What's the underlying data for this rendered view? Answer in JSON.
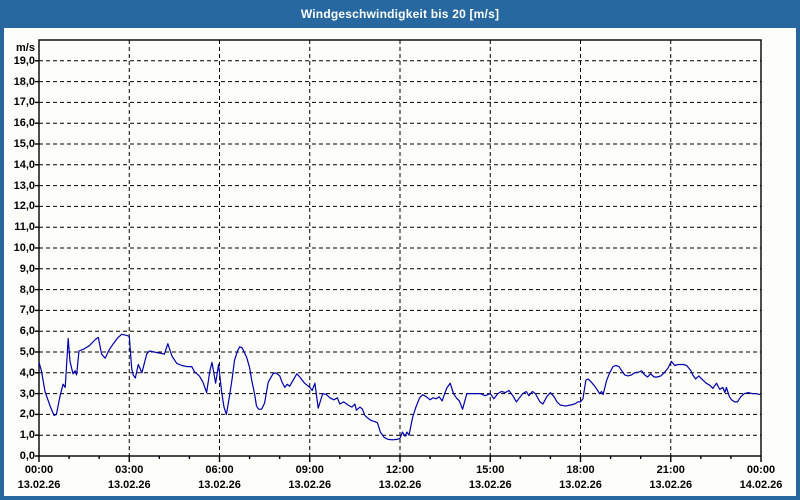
{
  "window": {
    "title": "Windgeschwindigkeit bis 20 [m/s]"
  },
  "colors": {
    "titlebar_bg": "#26689f",
    "frame": "#26689f",
    "panel_bg": "#fdfdfa",
    "line": "#0000aa",
    "grid": "#000000",
    "axis": "#000000",
    "text": "#000000",
    "title_text": "#ffffff"
  },
  "chart_data": {
    "type": "line",
    "title": "Windgeschwindigkeit bis 20 [m/s]",
    "ylabel": "m/s",
    "ylim": [
      0,
      20
    ],
    "ytick_step": 1,
    "ytick_labels": [
      "0,0",
      "1,0",
      "2,0",
      "3,0",
      "4,0",
      "5,0",
      "6,0",
      "7,0",
      "8,0",
      "9,0",
      "10,0",
      "11,0",
      "12,0",
      "13,0",
      "14,0",
      "15,0",
      "16,0",
      "17,0",
      "18,0",
      "19,0"
    ],
    "xlim_hours": [
      0,
      24
    ],
    "xticks": [
      {
        "hour": 0,
        "time": "00:00",
        "date": "13.02.26"
      },
      {
        "hour": 3,
        "time": "03:00",
        "date": "13.02.26"
      },
      {
        "hour": 6,
        "time": "06:00",
        "date": "13.02.26"
      },
      {
        "hour": 9,
        "time": "09:00",
        "date": "13.02.26"
      },
      {
        "hour": 12,
        "time": "12:00",
        "date": "13.02.26"
      },
      {
        "hour": 15,
        "time": "15:00",
        "date": "13.02.26"
      },
      {
        "hour": 18,
        "time": "18:00",
        "date": "13.02.26"
      },
      {
        "hour": 21,
        "time": "21:00",
        "date": "13.02.26"
      },
      {
        "hour": 24,
        "time": "00:00",
        "date": "14.02.26"
      }
    ],
    "minor_xtick_every_hours": 1,
    "grid": true,
    "legend": "none",
    "series": [
      {
        "name": "Windgeschwindigkeit",
        "unit": "m/s",
        "color": "#0000aa",
        "points": [
          [
            0.0,
            4.5
          ],
          [
            0.08,
            4.1
          ],
          [
            0.2,
            3.1
          ],
          [
            0.37,
            2.4
          ],
          [
            0.5,
            1.95
          ],
          [
            0.58,
            2.0
          ],
          [
            0.7,
            2.9
          ],
          [
            0.8,
            3.45
          ],
          [
            0.87,
            3.3
          ],
          [
            0.97,
            5.65
          ],
          [
            1.03,
            4.55
          ],
          [
            1.13,
            3.95
          ],
          [
            1.2,
            4.1
          ],
          [
            1.25,
            3.9
          ],
          [
            1.33,
            5.05
          ],
          [
            1.5,
            5.15
          ],
          [
            1.67,
            5.3
          ],
          [
            1.87,
            5.6
          ],
          [
            1.97,
            5.7
          ],
          [
            2.08,
            4.9
          ],
          [
            2.2,
            4.7
          ],
          [
            2.33,
            5.1
          ],
          [
            2.47,
            5.4
          ],
          [
            2.63,
            5.7
          ],
          [
            2.75,
            5.85
          ],
          [
            2.92,
            5.8
          ],
          [
            3.0,
            5.75
          ],
          [
            3.08,
            4.2
          ],
          [
            3.13,
            3.9
          ],
          [
            3.2,
            3.75
          ],
          [
            3.3,
            4.4
          ],
          [
            3.42,
            4.0
          ],
          [
            3.58,
            4.9
          ],
          [
            3.67,
            5.05
          ],
          [
            3.83,
            5.0
          ],
          [
            4.0,
            4.95
          ],
          [
            4.17,
            4.9
          ],
          [
            4.28,
            5.4
          ],
          [
            4.42,
            4.8
          ],
          [
            4.58,
            4.45
          ],
          [
            4.75,
            4.35
          ],
          [
            4.92,
            4.3
          ],
          [
            5.08,
            4.3
          ],
          [
            5.17,
            4.05
          ],
          [
            5.25,
            3.95
          ],
          [
            5.33,
            3.85
          ],
          [
            5.45,
            3.55
          ],
          [
            5.57,
            3.05
          ],
          [
            5.68,
            4.1
          ],
          [
            5.75,
            4.5
          ],
          [
            5.87,
            3.5
          ],
          [
            5.97,
            4.4
          ],
          [
            6.07,
            3.1
          ],
          [
            6.15,
            2.35
          ],
          [
            6.23,
            2.0
          ],
          [
            6.33,
            2.85
          ],
          [
            6.42,
            3.7
          ],
          [
            6.5,
            4.6
          ],
          [
            6.6,
            5.05
          ],
          [
            6.67,
            5.25
          ],
          [
            6.75,
            5.2
          ],
          [
            6.9,
            4.75
          ],
          [
            7.0,
            4.25
          ],
          [
            7.07,
            3.65
          ],
          [
            7.17,
            2.95
          ],
          [
            7.23,
            2.4
          ],
          [
            7.3,
            2.25
          ],
          [
            7.4,
            2.25
          ],
          [
            7.5,
            2.55
          ],
          [
            7.62,
            3.55
          ],
          [
            7.78,
            3.95
          ],
          [
            7.87,
            4.0
          ],
          [
            8.0,
            3.85
          ],
          [
            8.08,
            3.55
          ],
          [
            8.17,
            3.3
          ],
          [
            8.25,
            3.45
          ],
          [
            8.33,
            3.35
          ],
          [
            8.57,
            3.95
          ],
          [
            8.67,
            3.8
          ],
          [
            8.83,
            3.5
          ],
          [
            9.0,
            3.3
          ],
          [
            9.08,
            3.15
          ],
          [
            9.17,
            3.5
          ],
          [
            9.28,
            2.3
          ],
          [
            9.43,
            3.0
          ],
          [
            9.55,
            2.95
          ],
          [
            9.67,
            2.8
          ],
          [
            9.8,
            2.7
          ],
          [
            9.92,
            2.8
          ],
          [
            10.0,
            2.5
          ],
          [
            10.13,
            2.6
          ],
          [
            10.27,
            2.45
          ],
          [
            10.4,
            2.35
          ],
          [
            10.5,
            2.5
          ],
          [
            10.55,
            2.2
          ],
          [
            10.67,
            2.35
          ],
          [
            10.75,
            2.25
          ],
          [
            10.83,
            1.95
          ],
          [
            10.95,
            1.8
          ],
          [
            11.05,
            1.7
          ],
          [
            11.17,
            1.65
          ],
          [
            11.25,
            1.6
          ],
          [
            11.35,
            1.15
          ],
          [
            11.47,
            0.9
          ],
          [
            11.6,
            0.8
          ],
          [
            11.75,
            0.78
          ],
          [
            11.9,
            0.8
          ],
          [
            12.0,
            0.85
          ],
          [
            12.08,
            1.15
          ],
          [
            12.17,
            0.95
          ],
          [
            12.23,
            1.15
          ],
          [
            12.3,
            1.0
          ],
          [
            12.42,
            1.85
          ],
          [
            12.53,
            2.35
          ],
          [
            12.65,
            2.8
          ],
          [
            12.75,
            2.95
          ],
          [
            12.87,
            2.85
          ],
          [
            13.0,
            2.7
          ],
          [
            13.1,
            2.8
          ],
          [
            13.2,
            2.75
          ],
          [
            13.3,
            2.85
          ],
          [
            13.4,
            2.65
          ],
          [
            13.55,
            3.25
          ],
          [
            13.67,
            3.5
          ],
          [
            13.78,
            3.0
          ],
          [
            13.87,
            2.8
          ],
          [
            13.97,
            2.65
          ],
          [
            14.08,
            2.25
          ],
          [
            14.22,
            3.0
          ],
          [
            14.42,
            3.0
          ],
          [
            14.67,
            3.0
          ],
          [
            14.83,
            2.9
          ],
          [
            15.0,
            3.0
          ],
          [
            15.12,
            2.75
          ],
          [
            15.25,
            3.0
          ],
          [
            15.37,
            3.1
          ],
          [
            15.5,
            3.05
          ],
          [
            15.62,
            3.15
          ],
          [
            15.75,
            2.9
          ],
          [
            15.87,
            2.6
          ],
          [
            16.0,
            2.85
          ],
          [
            16.08,
            3.0
          ],
          [
            16.2,
            3.1
          ],
          [
            16.28,
            2.9
          ],
          [
            16.4,
            3.1
          ],
          [
            16.5,
            3.0
          ],
          [
            16.65,
            2.6
          ],
          [
            16.75,
            2.5
          ],
          [
            16.88,
            2.85
          ],
          [
            17.0,
            3.05
          ],
          [
            17.12,
            2.85
          ],
          [
            17.22,
            2.6
          ],
          [
            17.33,
            2.45
          ],
          [
            17.5,
            2.4
          ],
          [
            17.67,
            2.45
          ],
          [
            17.8,
            2.5
          ],
          [
            17.92,
            2.6
          ],
          [
            18.0,
            2.6
          ],
          [
            18.08,
            2.75
          ],
          [
            18.18,
            3.65
          ],
          [
            18.25,
            3.7
          ],
          [
            18.33,
            3.6
          ],
          [
            18.45,
            3.4
          ],
          [
            18.55,
            3.2
          ],
          [
            18.63,
            3.0
          ],
          [
            18.7,
            3.1
          ],
          [
            18.75,
            2.95
          ],
          [
            18.87,
            3.65
          ],
          [
            18.97,
            4.0
          ],
          [
            19.08,
            4.3
          ],
          [
            19.17,
            4.35
          ],
          [
            19.28,
            4.3
          ],
          [
            19.37,
            4.1
          ],
          [
            19.47,
            3.9
          ],
          [
            19.58,
            3.85
          ],
          [
            19.7,
            3.9
          ],
          [
            19.8,
            4.0
          ],
          [
            19.97,
            4.05
          ],
          [
            20.03,
            4.1
          ],
          [
            20.13,
            3.9
          ],
          [
            20.23,
            3.8
          ],
          [
            20.33,
            3.95
          ],
          [
            20.45,
            3.8
          ],
          [
            20.55,
            3.8
          ],
          [
            20.67,
            3.85
          ],
          [
            20.78,
            4.0
          ],
          [
            20.9,
            4.2
          ],
          [
            21.02,
            4.55
          ],
          [
            21.13,
            4.35
          ],
          [
            21.25,
            4.4
          ],
          [
            21.42,
            4.4
          ],
          [
            21.53,
            4.35
          ],
          [
            21.67,
            4.1
          ],
          [
            21.73,
            3.9
          ],
          [
            21.83,
            3.7
          ],
          [
            21.93,
            3.85
          ],
          [
            22.07,
            3.65
          ],
          [
            22.18,
            3.5
          ],
          [
            22.3,
            3.4
          ],
          [
            22.4,
            3.25
          ],
          [
            22.52,
            3.5
          ],
          [
            22.63,
            3.2
          ],
          [
            22.73,
            3.3
          ],
          [
            22.8,
            3.05
          ],
          [
            22.85,
            3.3
          ],
          [
            22.95,
            2.85
          ],
          [
            23.02,
            2.7
          ],
          [
            23.12,
            2.6
          ],
          [
            23.22,
            2.6
          ],
          [
            23.33,
            2.85
          ],
          [
            23.45,
            3.0
          ],
          [
            23.58,
            3.05
          ],
          [
            23.7,
            3.0
          ],
          [
            23.83,
            3.0
          ],
          [
            23.97,
            2.95
          ]
        ]
      }
    ]
  }
}
